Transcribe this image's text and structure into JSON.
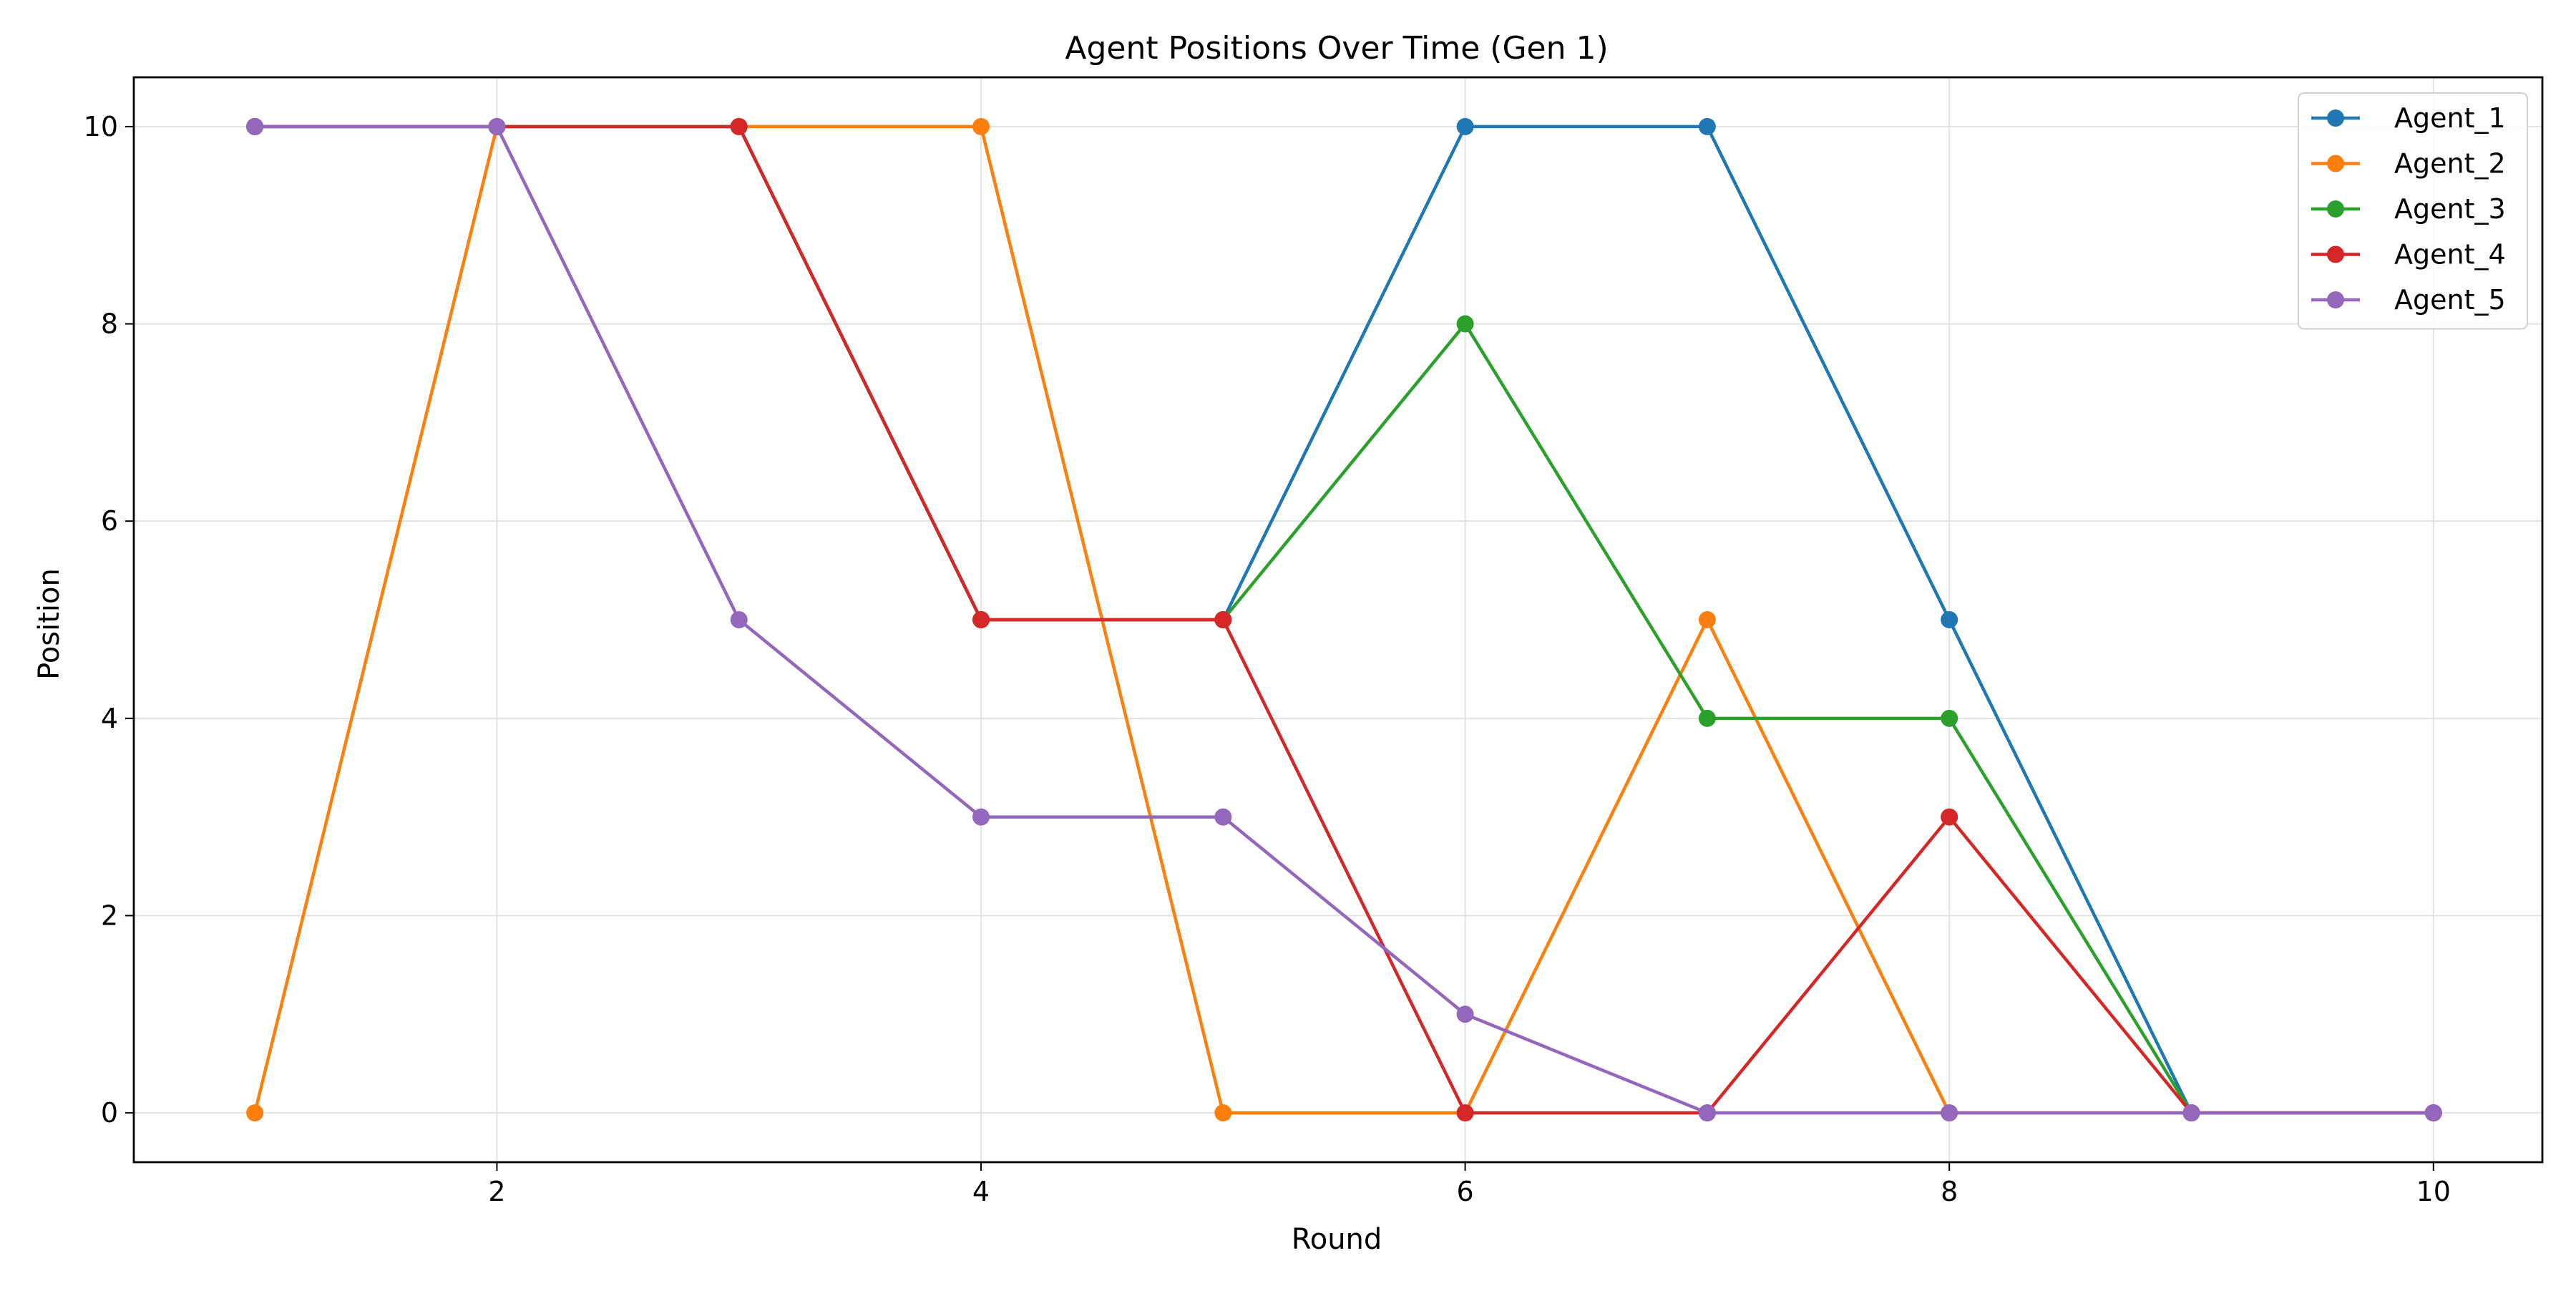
{
  "chart_data": {
    "type": "line",
    "title": "Agent Positions Over Time (Gen 1)",
    "xlabel": "Round",
    "ylabel": "Position",
    "x": [
      1,
      2,
      3,
      4,
      5,
      6,
      7,
      8,
      9,
      10
    ],
    "xlim": [
      0.5,
      10.45
    ],
    "ylim": [
      -0.5,
      10.5
    ],
    "xticks": [
      2,
      4,
      6,
      8,
      10
    ],
    "yticks": [
      0,
      2,
      4,
      6,
      8,
      10
    ],
    "xtick_labels": [
      "2",
      "4",
      "6",
      "8",
      "10"
    ],
    "ytick_labels": [
      "0",
      "2",
      "4",
      "6",
      "8",
      "10"
    ],
    "grid": true,
    "legend_position": "top-right",
    "series": [
      {
        "name": "Agent_1",
        "color": "#1f77b4",
        "values": [
          10,
          10,
          10,
          5,
          5,
          10,
          10,
          5,
          0,
          0
        ]
      },
      {
        "name": "Agent_2",
        "color": "#ff7f0e",
        "values": [
          0,
          10,
          10,
          10,
          0,
          0,
          5,
          0,
          0,
          0
        ]
      },
      {
        "name": "Agent_3",
        "color": "#2ca02c",
        "values": [
          10,
          10,
          10,
          5,
          5,
          8,
          4,
          4,
          0,
          0
        ]
      },
      {
        "name": "Agent_4",
        "color": "#d62728",
        "values": [
          10,
          10,
          10,
          5,
          5,
          0,
          0,
          3,
          0,
          0
        ]
      },
      {
        "name": "Agent_5",
        "color": "#9467bd",
        "values": [
          10,
          10,
          5,
          3,
          3,
          1,
          0,
          0,
          0,
          0
        ]
      }
    ]
  }
}
